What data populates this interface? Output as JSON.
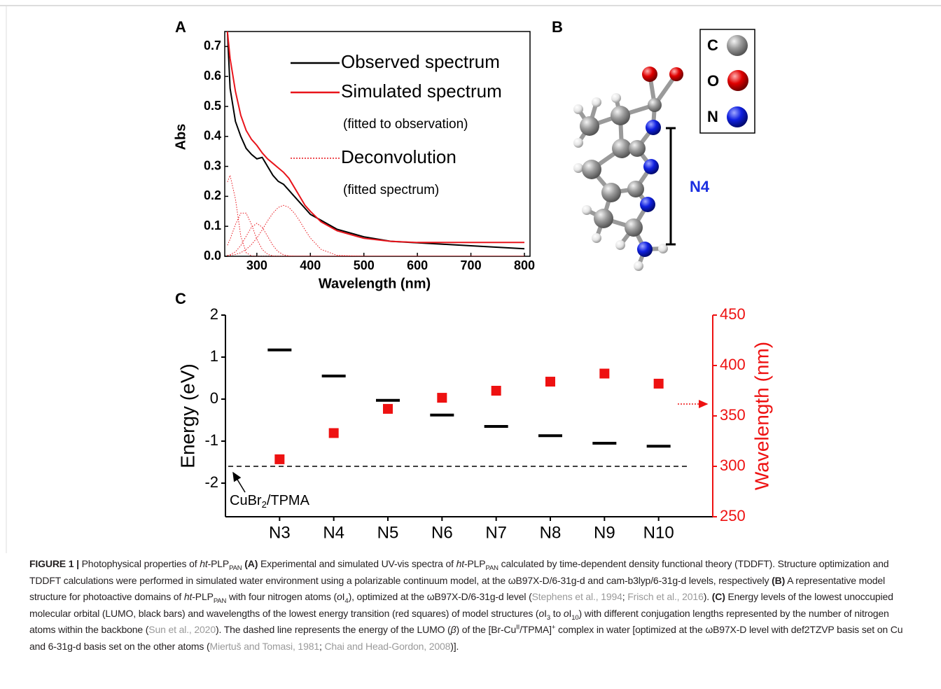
{
  "chart_data": [
    {
      "type": "line",
      "label": "A",
      "xlabel": "Wavelength (nm)",
      "ylabel": "Abs",
      "xlim": [
        240,
        800
      ],
      "ylim": [
        0,
        0.75
      ],
      "xticks": [
        300,
        400,
        500,
        600,
        700,
        800
      ],
      "yticks": [
        {
          "value": 0,
          "label": "0.0"
        },
        0.1,
        0.2,
        0.3,
        0.4,
        0.5,
        0.6,
        0.7
      ],
      "legend": "upper right",
      "x": [
        245,
        250,
        260,
        270,
        280,
        290,
        300,
        310,
        320,
        330,
        340,
        350,
        360,
        370,
        380,
        390,
        400,
        420,
        450,
        500,
        550,
        600,
        650,
        700,
        750,
        800
      ],
      "series": [
        {
          "name": "Observed spectrum",
          "color": "#000000",
          "dash": "solid",
          "values": [
            0.75,
            0.56,
            0.45,
            0.4,
            0.36,
            0.34,
            0.325,
            0.33,
            0.3,
            0.27,
            0.25,
            0.24,
            0.22,
            0.2,
            0.18,
            0.16,
            0.14,
            0.12,
            0.09,
            0.065,
            0.05,
            0.045,
            0.04,
            0.035,
            0.03,
            0.025
          ]
        },
        {
          "name": "Simulated spectrum",
          "note": "(fitted to observation)",
          "color": "#e8141b",
          "dash": "solid",
          "values": [
            0.75,
            0.66,
            0.55,
            0.47,
            0.42,
            0.39,
            0.37,
            0.345,
            0.325,
            0.31,
            0.295,
            0.28,
            0.26,
            0.23,
            0.2,
            0.17,
            0.15,
            0.115,
            0.085,
            0.06,
            0.05,
            0.046,
            0.046,
            0.046,
            0.046,
            0.046
          ]
        },
        {
          "name": "Deconvolution",
          "note": "(fitted spectrum)",
          "color": "#e8141b",
          "dash": "dotted",
          "components": [
            [
              0.248,
              0.27,
              0.191,
              0.067,
              0.012,
              0.001,
              0,
              0,
              0,
              0,
              0,
              0,
              0,
              0,
              0,
              0,
              0,
              0,
              0,
              0,
              0,
              0,
              0,
              0,
              0,
              0
            ],
            [
              0.037,
              0.057,
              0.106,
              0.144,
              0.144,
              0.106,
              0.057,
              0.023,
              0.007,
              0.001,
              0,
              0,
              0,
              0,
              0,
              0,
              0,
              0,
              0,
              0,
              0,
              0,
              0,
              0,
              0,
              0
            ],
            [
              0.003,
              0.005,
              0.015,
              0.036,
              0.067,
              0.097,
              0.11,
              0.097,
              0.067,
              0.036,
              0.015,
              0.005,
              0.001,
              0,
              0,
              0,
              0,
              0,
              0,
              0,
              0,
              0,
              0,
              0,
              0,
              0
            ],
            [
              0.002,
              0.003,
              0.006,
              0.012,
              0.023,
              0.039,
              0.061,
              0.088,
              0.118,
              0.144,
              0.163,
              0.17,
              0.163,
              0.144,
              0.118,
              0.088,
              0.061,
              0.023,
              0.003,
              0,
              0,
              0,
              0,
              0,
              0,
              0
            ]
          ]
        }
      ]
    },
    {
      "type": "level",
      "label": "C",
      "ylabel": "Energy (eV)",
      "y2label": "Wavelength (nm)",
      "categories": [
        "N3",
        "N4",
        "N5",
        "N6",
        "N7",
        "N8",
        "N9",
        "N10"
      ],
      "ylim": [
        -2.8,
        2
      ],
      "yticks": [
        -2,
        -1,
        0,
        1,
        2
      ],
      "y2lim": [
        250,
        450
      ],
      "y2ticks": [
        250,
        300,
        350,
        400,
        450
      ],
      "series": [
        {
          "marker": "bar",
          "color": "#000000",
          "values": [
            1.17,
            0.55,
            -0.03,
            -0.38,
            -0.65,
            -0.87,
            -1.05,
            -1.12
          ]
        },
        {
          "marker": "square",
          "axis": "y2",
          "color": "#ee1111",
          "values": [
            307,
            333,
            357,
            368,
            375,
            384,
            392,
            382
          ]
        }
      ],
      "reference_line": {
        "value": -1.6,
        "label": [
          {
            "text": "CuBr"
          },
          {
            "text": "2",
            "sub": true
          },
          {
            "text": "/TPMA"
          }
        ]
      }
    }
  ],
  "structure": {
    "label": "B",
    "legend": [
      "C",
      "O",
      "N"
    ],
    "bracket_label": "N4"
  },
  "caption": [
    {
      "text": "FIGURE 1 |",
      "b": true
    },
    {
      "text": " Photophysical properties of "
    },
    {
      "text": "ht",
      "i": true
    },
    {
      "text": "-PLP"
    },
    {
      "text": "PAN",
      "sub": true
    },
    {
      "text": " (A)",
      "b": true
    },
    {
      "text": " Experimental and simulated UV-vis spectra of "
    },
    {
      "text": "ht",
      "i": true
    },
    {
      "text": "-PLP"
    },
    {
      "text": "PAN",
      "sub": true
    },
    {
      "text": " calculated by time-dependent density functional theory (TDDFT). Structure optimization and TDDFT calculations were performed in simulated water environment using a polarizable continuum model, at the ωB97X-D/6-31g-d and cam-b3lyp/6-31g-d levels, respectively "
    },
    {
      "text": "(B)",
      "b": true
    },
    {
      "text": " A representative model structure for photoactive domains of "
    },
    {
      "text": "ht",
      "i": true
    },
    {
      "text": "-PLP"
    },
    {
      "text": "PAN",
      "sub": true
    },
    {
      "text": " with four nitrogen atoms ("
    },
    {
      "text": "o",
      "i": true
    },
    {
      "text": "I"
    },
    {
      "text": "4",
      "sub": true
    },
    {
      "text": "), optimized at the ωB97X-D/6-31g-d level ("
    },
    {
      "text": "Stephens et al., 1994",
      "cite": true
    },
    {
      "text": "; "
    },
    {
      "text": "Frisch et al., 2016",
      "cite": true
    },
    {
      "text": "). "
    },
    {
      "text": "(C)",
      "b": true
    },
    {
      "text": " Energy levels of the lowest unoccupied molecular orbital (LUMO, black bars) and wavelengths of the lowest energy transition (red squares) of model structures ("
    },
    {
      "text": "o",
      "i": true
    },
    {
      "text": "I"
    },
    {
      "text": "3",
      "sub": true
    },
    {
      "text": " to "
    },
    {
      "text": "o",
      "i": true
    },
    {
      "text": "I"
    },
    {
      "text": "10",
      "sub": true
    },
    {
      "text": ") with different conjugation lengths represented by the number of nitrogen atoms within the backbone ("
    },
    {
      "text": "Sun et al., 2020",
      "cite": true
    },
    {
      "text": "). The dashed line represents the energy of the LUMO ("
    },
    {
      "text": "β",
      "i": true
    },
    {
      "text": ") of the [Br-Cu"
    },
    {
      "text": "II",
      "sup": true
    },
    {
      "text": "/TPMA]"
    },
    {
      "text": "+",
      "sup": true
    },
    {
      "text": " complex in water [optimized at the ωB97X-D level with def2TZVP basis set on Cu and 6-31g-d basis set on the other atoms ("
    },
    {
      "text": "Miertuš and Tomasi, 1981",
      "cite": true
    },
    {
      "text": "; "
    },
    {
      "text": "Chai and Head-Gordon, 2008",
      "cite": true
    },
    {
      "text": ")]."
    }
  ]
}
